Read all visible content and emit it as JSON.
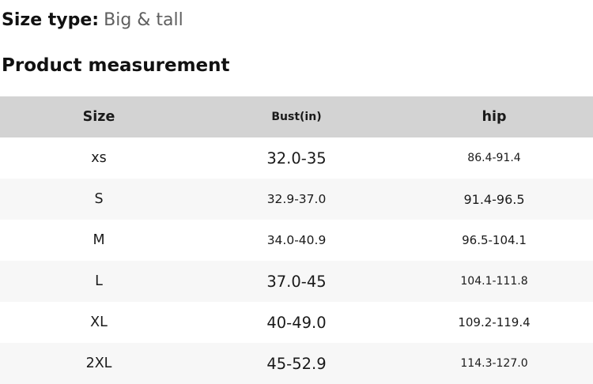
{
  "size_type": {
    "label": "Size type:",
    "value": "Big & tall"
  },
  "section_title": "Product measurement",
  "table": {
    "columns": [
      {
        "key": "size",
        "label": "Size"
      },
      {
        "key": "bust",
        "label": "Bust(in)"
      },
      {
        "key": "hip",
        "label": "hip"
      }
    ],
    "rows": [
      {
        "size": "xs",
        "bust": "32.0-35",
        "hip": "86.4-91.4"
      },
      {
        "size": "S",
        "bust": "32.9-37.0",
        "hip": "91.4-96.5"
      },
      {
        "size": "M",
        "bust": "34.0-40.9",
        "hip": "96.5-104.1"
      },
      {
        "size": "L",
        "bust": "37.0-45",
        "hip": "104.1-111.8"
      },
      {
        "size": "XL",
        "bust": "40-49.0",
        "hip": "109.2-119.4"
      },
      {
        "size": "2XL",
        "bust": "45-52.9",
        "hip": "114.3-127.0"
      }
    ]
  },
  "colors": {
    "header_row_bg": "#d3d3d3",
    "zebra_row_bg": "#f7f7f7",
    "text": "#1a1a1a",
    "size_type_value": "#5f5f5f"
  }
}
